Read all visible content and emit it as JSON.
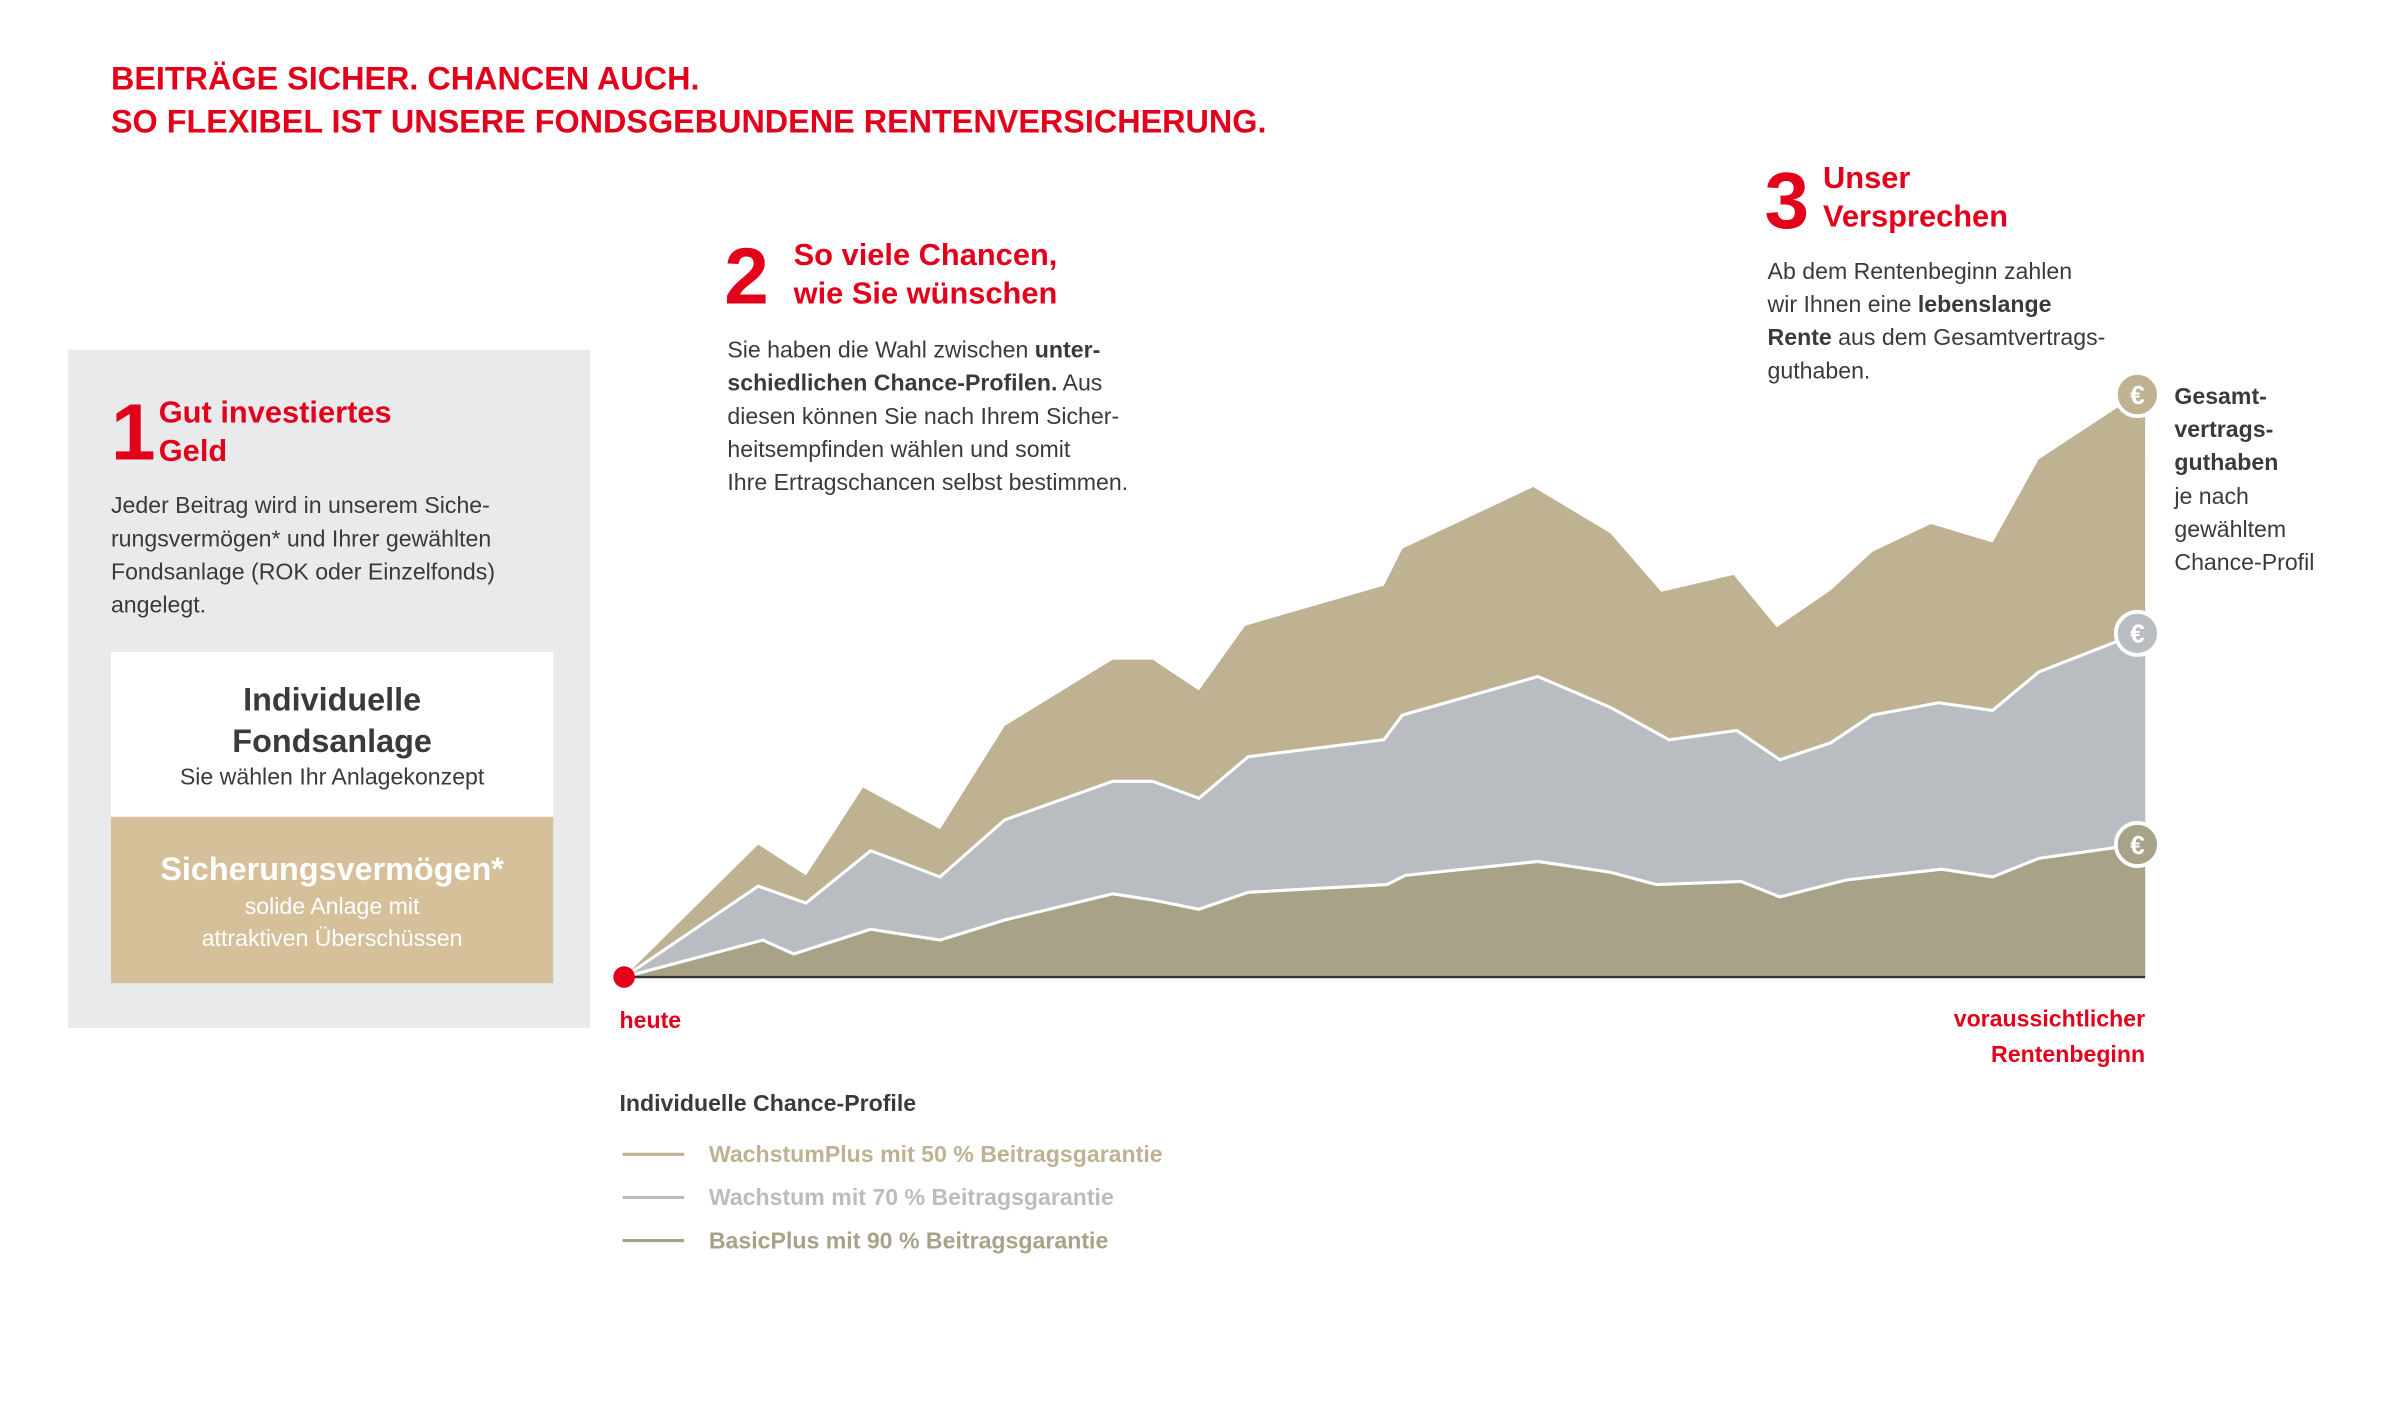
{
  "title": [
    "BEITRÄGE SICHER. CHANCEN AUCH.",
    "SO FLEXIBEL IST UNSERE FONDSGEBUNDENE RENTENVERSICHERUNG."
  ],
  "sections": [
    {
      "number": "1",
      "heading": [
        "Gut investiertes",
        "Geld"
      ],
      "body": [
        [
          {
            "text": "Jeder Beitrag wird in unserem Siche-"
          }
        ],
        [
          {
            "text": "rungsvermögen* und Ihrer gewählten"
          }
        ],
        [
          {
            "text": "Fondsanlage (ROK oder Einzelfonds)"
          }
        ],
        [
          {
            "text": "angelegt."
          }
        ]
      ]
    },
    {
      "number": "2",
      "heading": [
        "So viele Chancen,",
        "wie Sie wünschen"
      ],
      "body": [
        [
          {
            "text": "Sie haben die Wahl zwischen "
          },
          {
            "text": "unter-",
            "bold": true
          }
        ],
        [
          {
            "text": "schiedlichen Chance-Profilen.",
            "bold": true
          },
          {
            "text": " Aus"
          }
        ],
        [
          {
            "text": "diesen können Sie nach Ihrem Sicher-"
          }
        ],
        [
          {
            "text": "heitsempfinden wählen und somit"
          }
        ],
        [
          {
            "text": "Ihre Ertragschancen selbst bestimmen."
          }
        ]
      ]
    },
    {
      "number": "3",
      "heading": [
        "Unser",
        "Versprechen"
      ],
      "body": [
        [
          {
            "text": "Ab dem Rentenbeginn zahlen"
          }
        ],
        [
          {
            "text": "wir Ihnen eine "
          },
          {
            "text": "lebenslange",
            "bold": true
          }
        ],
        [
          {
            "text": "Rente",
            "bold": true
          },
          {
            "text": " aus dem Gesamtvertrags-"
          }
        ],
        [
          {
            "text": "guthaben."
          }
        ]
      ]
    }
  ],
  "box": {
    "top": {
      "title": [
        "Individuelle",
        "Fondsanlage"
      ],
      "subtitle": "Sie wählen Ihr Anlagekonzept",
      "color": "#ffffff"
    },
    "bottom": {
      "title": "Sicherungsvermögen*",
      "subtitle": [
        "solide Anlage mit",
        "attraktiven Überschüssen"
      ],
      "color": "#d6c09a"
    }
  },
  "end_label": {
    "bold": [
      "Gesamt-",
      "vertrags-",
      "guthaben"
    ],
    "normal": [
      "je nach",
      "gewähltem",
      "Chance-Profil"
    ]
  },
  "markers": [
    "€",
    "€",
    "€"
  ],
  "axis": {
    "start": "heute",
    "end": [
      "voraussichtlicher",
      "Rentenbeginn"
    ]
  },
  "legend": {
    "title": "Individuelle Chance-Profile",
    "items": [
      {
        "name": "WachstumPlus mit 50 % Beitragsgarantie",
        "color": "#bfb293"
      },
      {
        "name": "Wachstum mit 70 % Beitragsgarantie",
        "color": "#b9bcc0"
      },
      {
        "name": "BasicPlus mit 90 % Beitragsgarantie",
        "color": "#a8a288"
      }
    ]
  }
}
